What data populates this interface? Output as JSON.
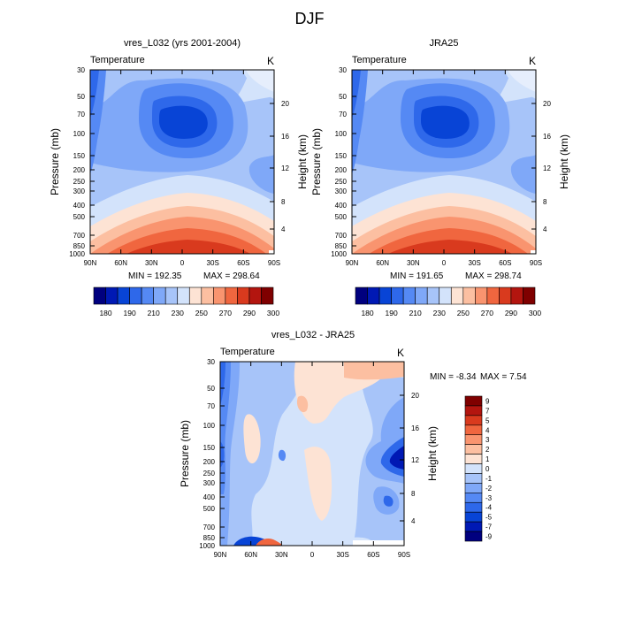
{
  "page": {
    "title": "DJF"
  },
  "chart_data": [
    {
      "type": "heatmap",
      "id": "model",
      "title": "vres_L032 (yrs 2001-2004)",
      "left_label": "Temperature",
      "right_label": "K",
      "ylabel": "Pressure (mb)",
      "ylabel_right": "Height (km)",
      "x_ticks": [
        "90N",
        "60N",
        "30N",
        "0",
        "30S",
        "60S",
        "90S"
      ],
      "y_ticks": [
        "30",
        "50",
        "70",
        "100",
        "150",
        "200",
        "250",
        "300",
        "400",
        "500",
        "700",
        "850",
        "1000"
      ],
      "height_ticks": [
        "4",
        "8",
        "12",
        "16",
        "20"
      ],
      "xlim": [
        90,
        -90
      ],
      "ylim": [
        1000,
        30
      ],
      "min_label": "MIN = 192.35",
      "max_label": "MAX = 298.64",
      "min": 192.35,
      "max": 298.64,
      "colorbar_levels": [
        "180",
        "190",
        "210",
        "230",
        "250",
        "270",
        "290",
        "300"
      ]
    },
    {
      "type": "heatmap",
      "id": "obs",
      "title": "JRA25",
      "left_label": "Temperature",
      "right_label": "K",
      "ylabel": "Pressure (mb)",
      "ylabel_right": "Height (km)",
      "x_ticks": [
        "90N",
        "60N",
        "30N",
        "0",
        "30S",
        "60S",
        "90S"
      ],
      "y_ticks": [
        "30",
        "50",
        "70",
        "100",
        "150",
        "200",
        "250",
        "300",
        "400",
        "500",
        "700",
        "850",
        "1000"
      ],
      "height_ticks": [
        "4",
        "8",
        "12",
        "16",
        "20"
      ],
      "xlim": [
        90,
        -90
      ],
      "ylim": [
        1000,
        30
      ],
      "min_label": "MIN = 191.65",
      "max_label": "MAX = 298.74",
      "min": 191.65,
      "max": 298.74,
      "colorbar_levels": [
        "180",
        "190",
        "210",
        "230",
        "250",
        "270",
        "290",
        "300"
      ]
    },
    {
      "type": "heatmap",
      "id": "diff",
      "title": "vres_L032 - JRA25",
      "left_label": "Temperature",
      "right_label": "K",
      "ylabel": "Pressure (mb)",
      "ylabel_right": "Height (km)",
      "x_ticks": [
        "90N",
        "60N",
        "30N",
        "0",
        "30S",
        "60S",
        "90S"
      ],
      "y_ticks": [
        "30",
        "50",
        "70",
        "100",
        "150",
        "200",
        "250",
        "300",
        "400",
        "500",
        "700",
        "850",
        "1000"
      ],
      "height_ticks": [
        "4",
        "8",
        "12",
        "16",
        "20"
      ],
      "xlim": [
        90,
        -90
      ],
      "ylim": [
        1000,
        30
      ],
      "min_label": "MIN =  -8.34",
      "max_label": "MAX =   7.54",
      "min": -8.34,
      "max": 7.54,
      "colorbar_levels": [
        "9",
        "7",
        "5",
        "4",
        "3",
        "2",
        "1",
        "0",
        "-1",
        "-2",
        "-3",
        "-4",
        "-5",
        "-7",
        "-9"
      ]
    }
  ],
  "palettes": {
    "temperature": [
      "#00007f",
      "#0019b4",
      "#0844d6",
      "#2e68ea",
      "#5589f4",
      "#7fa8f8",
      "#a7c4f9",
      "#d3e3fb",
      "#fde3d4",
      "#fcbfa1",
      "#f9946f",
      "#f0663f",
      "#d93a1e",
      "#b3150f",
      "#7f0000"
    ],
    "difference": [
      "#7f0000",
      "#b3150f",
      "#d93a1e",
      "#f0663f",
      "#f9946f",
      "#fcbfa1",
      "#fde3d4",
      "#d3e3fb",
      "#a7c4f9",
      "#7fa8f8",
      "#5589f4",
      "#2e68ea",
      "#0844d6",
      "#0019b4",
      "#00007f"
    ]
  }
}
